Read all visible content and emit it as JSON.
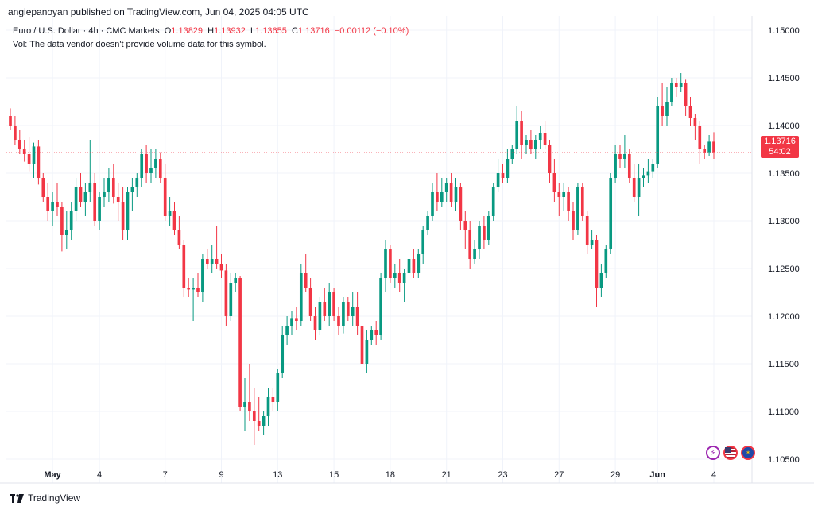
{
  "header": {
    "publisher_line": "angiepanoyan published on TradingView.com, Jun 04, 2025 04:05 UTC"
  },
  "legend": {
    "symbol": "Euro / U.S. Dollar · 4h · CMC Markets",
    "o_label": "O",
    "o_value": "1.13829",
    "h_label": "H",
    "h_value": "1.13932",
    "l_label": "L",
    "l_value": "1.13655",
    "c_label": "C",
    "c_value": "1.13716",
    "change": "−0.00112 (−0.10%)",
    "vol_note": "Vol: The data vendor doesn't provide volume data for this symbol."
  },
  "price_tag": {
    "price": "1.13716",
    "countdown": "54:02"
  },
  "footer": {
    "brand": "TradingView"
  },
  "icons": [
    "lightning-icon",
    "us-flag-icon",
    "eu-flag-icon"
  ],
  "colors": {
    "up": "#089981",
    "down": "#f23645",
    "grid": "#f0f3fa",
    "text": "#131722"
  },
  "chart_data": {
    "type": "candlestick",
    "ylim": [
      1.1025,
      1.1515
    ],
    "y_ticks": [
      "1.10500",
      "1.11000",
      "1.11500",
      "1.12000",
      "1.12500",
      "1.13000",
      "1.13500",
      "1.14000",
      "1.14500",
      "1.15000"
    ],
    "x_ticks": [
      "May",
      "4",
      "7",
      "9",
      "13",
      "15",
      "18",
      "21",
      "23",
      "27",
      "29",
      "Jun",
      "4"
    ],
    "last_price": 1.13716,
    "candles": [
      [
        1.141,
        1.1418,
        1.1395,
        1.14
      ],
      [
        1.14,
        1.141,
        1.138,
        1.1385
      ],
      [
        1.1385,
        1.1395,
        1.137,
        1.1375
      ],
      [
        1.1375,
        1.1385,
        1.1362,
        1.137
      ],
      [
        1.137,
        1.1388,
        1.1352,
        1.136
      ],
      [
        1.136,
        1.1382,
        1.1345,
        1.1378
      ],
      [
        1.1378,
        1.1385,
        1.1338,
        1.1345
      ],
      [
        1.1345,
        1.135,
        1.132,
        1.1325
      ],
      [
        1.1325,
        1.134,
        1.13,
        1.131
      ],
      [
        1.131,
        1.133,
        1.1295,
        1.132
      ],
      [
        1.132,
        1.134,
        1.1305,
        1.1315
      ],
      [
        1.1315,
        1.132,
        1.1268,
        1.1285
      ],
      [
        1.1285,
        1.131,
        1.127,
        1.129
      ],
      [
        1.129,
        1.132,
        1.128,
        1.131
      ],
      [
        1.131,
        1.1345,
        1.13,
        1.1335
      ],
      [
        1.1335,
        1.135,
        1.1315,
        1.132
      ],
      [
        1.132,
        1.134,
        1.1305,
        1.133
      ],
      [
        1.133,
        1.1385,
        1.132,
        1.134
      ],
      [
        1.134,
        1.135,
        1.1295,
        1.13
      ],
      [
        1.13,
        1.133,
        1.129,
        1.1325
      ],
      [
        1.1325,
        1.1345,
        1.1315,
        1.133
      ],
      [
        1.133,
        1.1355,
        1.132,
        1.1345
      ],
      [
        1.1345,
        1.136,
        1.1318,
        1.1325
      ],
      [
        1.1325,
        1.134,
        1.13,
        1.132
      ],
      [
        1.132,
        1.1335,
        1.128,
        1.129
      ],
      [
        1.129,
        1.1335,
        1.128,
        1.133
      ],
      [
        1.133,
        1.1345,
        1.131,
        1.1335
      ],
      [
        1.1335,
        1.135,
        1.1325,
        1.1345
      ],
      [
        1.1345,
        1.1375,
        1.1335,
        1.137
      ],
      [
        1.137,
        1.138,
        1.134,
        1.135
      ],
      [
        1.135,
        1.1375,
        1.134,
        1.1355
      ],
      [
        1.1355,
        1.1375,
        1.1345,
        1.1365
      ],
      [
        1.1365,
        1.1372,
        1.134,
        1.1345
      ],
      [
        1.1345,
        1.136,
        1.13,
        1.1305
      ],
      [
        1.1305,
        1.1325,
        1.1295,
        1.131
      ],
      [
        1.131,
        1.132,
        1.1285,
        1.129
      ],
      [
        1.129,
        1.1305,
        1.127,
        1.1275
      ],
      [
        1.1275,
        1.128,
        1.122,
        1.123
      ],
      [
        1.123,
        1.124,
        1.122,
        1.1228
      ],
      [
        1.1228,
        1.124,
        1.1195,
        1.123
      ],
      [
        1.123,
        1.1245,
        1.122,
        1.1225
      ],
      [
        1.1225,
        1.1265,
        1.1215,
        1.126
      ],
      [
        1.126,
        1.127,
        1.125,
        1.1255
      ],
      [
        1.1255,
        1.1275,
        1.1245,
        1.126
      ],
      [
        1.126,
        1.1295,
        1.125,
        1.1255
      ],
      [
        1.1255,
        1.1265,
        1.124,
        1.1248
      ],
      [
        1.1248,
        1.1255,
        1.119,
        1.12
      ],
      [
        1.12,
        1.1245,
        1.1195,
        1.1235
      ],
      [
        1.1235,
        1.1245,
        1.1225,
        1.124
      ],
      [
        1.124,
        1.1242,
        1.11,
        1.1105
      ],
      [
        1.1105,
        1.1135,
        1.108,
        1.111
      ],
      [
        1.111,
        1.115,
        1.109,
        1.11
      ],
      [
        1.11,
        1.1125,
        1.1065,
        1.109
      ],
      [
        1.109,
        1.1115,
        1.108,
        1.1085
      ],
      [
        1.1085,
        1.11,
        1.1075,
        1.1095
      ],
      [
        1.1095,
        1.1125,
        1.1085,
        1.1115
      ],
      [
        1.1115,
        1.1125,
        1.11,
        1.111
      ],
      [
        1.111,
        1.1145,
        1.11,
        1.114
      ],
      [
        1.114,
        1.119,
        1.1135,
        1.118
      ],
      [
        1.118,
        1.12,
        1.117,
        1.119
      ],
      [
        1.119,
        1.1205,
        1.118,
        1.1198
      ],
      [
        1.1198,
        1.121,
        1.1185,
        1.1195
      ],
      [
        1.1195,
        1.1255,
        1.119,
        1.1245
      ],
      [
        1.1245,
        1.1265,
        1.1225,
        1.123
      ],
      [
        1.123,
        1.124,
        1.1195,
        1.12
      ],
      [
        1.12,
        1.121,
        1.1175,
        1.1185
      ],
      [
        1.1185,
        1.122,
        1.118,
        1.1215
      ],
      [
        1.1215,
        1.123,
        1.1195,
        1.12
      ],
      [
        1.12,
        1.1235,
        1.119,
        1.1225
      ],
      [
        1.1225,
        1.123,
        1.1195,
        1.12
      ],
      [
        1.12,
        1.121,
        1.118,
        1.119
      ],
      [
        1.119,
        1.122,
        1.1182,
        1.1215
      ],
      [
        1.1215,
        1.122,
        1.1195,
        1.12
      ],
      [
        1.12,
        1.1225,
        1.119,
        1.121
      ],
      [
        1.121,
        1.1225,
        1.118,
        1.119
      ],
      [
        1.119,
        1.1205,
        1.113,
        1.115
      ],
      [
        1.115,
        1.1185,
        1.114,
        1.1175
      ],
      [
        1.1175,
        1.119,
        1.117,
        1.1185
      ],
      [
        1.1185,
        1.1195,
        1.117,
        1.118
      ],
      [
        1.118,
        1.1245,
        1.1175,
        1.124
      ],
      [
        1.124,
        1.128,
        1.1225,
        1.127
      ],
      [
        1.127,
        1.1275,
        1.1235,
        1.124
      ],
      [
        1.124,
        1.1255,
        1.123,
        1.1245
      ],
      [
        1.1245,
        1.126,
        1.1225,
        1.1235
      ],
      [
        1.1235,
        1.125,
        1.1215,
        1.1245
      ],
      [
        1.1245,
        1.1265,
        1.1235,
        1.126
      ],
      [
        1.126,
        1.127,
        1.124,
        1.1245
      ],
      [
        1.1245,
        1.127,
        1.124,
        1.1265
      ],
      [
        1.1265,
        1.1295,
        1.1255,
        1.129
      ],
      [
        1.129,
        1.131,
        1.1285,
        1.1305
      ],
      [
        1.1305,
        1.134,
        1.13,
        1.133
      ],
      [
        1.133,
        1.135,
        1.131,
        1.132
      ],
      [
        1.132,
        1.1345,
        1.1315,
        1.133
      ],
      [
        1.133,
        1.1345,
        1.132,
        1.134
      ],
      [
        1.134,
        1.135,
        1.1315,
        1.132
      ],
      [
        1.132,
        1.1345,
        1.131,
        1.1335
      ],
      [
        1.1335,
        1.134,
        1.129,
        1.13
      ],
      [
        1.13,
        1.131,
        1.127,
        1.129
      ],
      [
        1.129,
        1.13,
        1.125,
        1.126
      ],
      [
        1.126,
        1.128,
        1.1255,
        1.127
      ],
      [
        1.127,
        1.13,
        1.126,
        1.1295
      ],
      [
        1.1295,
        1.1305,
        1.127,
        1.128
      ],
      [
        1.128,
        1.131,
        1.1275,
        1.1305
      ],
      [
        1.1305,
        1.134,
        1.13,
        1.1335
      ],
      [
        1.1335,
        1.1365,
        1.133,
        1.135
      ],
      [
        1.135,
        1.136,
        1.134,
        1.1345
      ],
      [
        1.1345,
        1.1375,
        1.134,
        1.1365
      ],
      [
        1.1365,
        1.138,
        1.136,
        1.1375
      ],
      [
        1.1375,
        1.142,
        1.137,
        1.1405
      ],
      [
        1.1405,
        1.1415,
        1.1365,
        1.138
      ],
      [
        1.138,
        1.139,
        1.137,
        1.1385
      ],
      [
        1.1385,
        1.1395,
        1.137,
        1.1375
      ],
      [
        1.1375,
        1.139,
        1.1365,
        1.1385
      ],
      [
        1.1385,
        1.14,
        1.1375,
        1.1392
      ],
      [
        1.1392,
        1.1405,
        1.1375,
        1.138
      ],
      [
        1.138,
        1.1385,
        1.134,
        1.135
      ],
      [
        1.135,
        1.1365,
        1.132,
        1.133
      ],
      [
        1.133,
        1.134,
        1.1305,
        1.1325
      ],
      [
        1.1325,
        1.134,
        1.131,
        1.133
      ],
      [
        1.133,
        1.1335,
        1.13,
        1.131
      ],
      [
        1.131,
        1.132,
        1.128,
        1.129
      ],
      [
        1.129,
        1.134,
        1.1285,
        1.1335
      ],
      [
        1.1335,
        1.134,
        1.13,
        1.1305
      ],
      [
        1.1305,
        1.131,
        1.1265,
        1.1275
      ],
      [
        1.1275,
        1.129,
        1.127,
        1.128
      ],
      [
        1.128,
        1.1285,
        1.121,
        1.123
      ],
      [
        1.123,
        1.1255,
        1.122,
        1.1245
      ],
      [
        1.1245,
        1.1275,
        1.124,
        1.127
      ],
      [
        1.127,
        1.135,
        1.1265,
        1.1345
      ],
      [
        1.1345,
        1.138,
        1.134,
        1.137
      ],
      [
        1.137,
        1.138,
        1.1355,
        1.1365
      ],
      [
        1.1365,
        1.139,
        1.1355,
        1.137
      ],
      [
        1.137,
        1.1375,
        1.134,
        1.1345
      ],
      [
        1.1345,
        1.136,
        1.132,
        1.1325
      ],
      [
        1.1325,
        1.136,
        1.1305,
        1.1345
      ],
      [
        1.1345,
        1.1355,
        1.1335,
        1.1348
      ],
      [
        1.1348,
        1.1365,
        1.134,
        1.1352
      ],
      [
        1.1352,
        1.1365,
        1.1345,
        1.136
      ],
      [
        1.136,
        1.143,
        1.1355,
        1.142
      ],
      [
        1.142,
        1.1445,
        1.14,
        1.141
      ],
      [
        1.141,
        1.144,
        1.14,
        1.1425
      ],
      [
        1.1425,
        1.145,
        1.142,
        1.1445
      ],
      [
        1.1445,
        1.145,
        1.143,
        1.144
      ],
      [
        1.144,
        1.1455,
        1.1435,
        1.1445
      ],
      [
        1.1445,
        1.1448,
        1.141,
        1.142
      ],
      [
        1.142,
        1.143,
        1.14,
        1.1408
      ],
      [
        1.1408,
        1.1412,
        1.1385,
        1.14
      ],
      [
        1.14,
        1.1405,
        1.136,
        1.1375
      ],
      [
        1.1375,
        1.138,
        1.1365,
        1.1372
      ],
      [
        1.1372,
        1.139,
        1.1368,
        1.1383
      ],
      [
        1.1383,
        1.1393,
        1.1365,
        1.1372
      ]
    ]
  }
}
